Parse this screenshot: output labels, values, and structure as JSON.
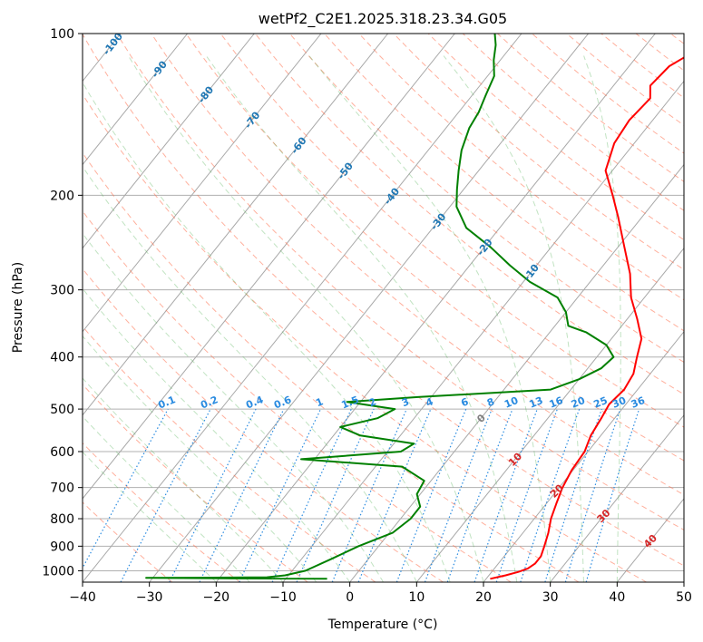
{
  "chart_data": {
    "type": "line",
    "title": "wetPf2_C2E1.2025.318.23.34.G05",
    "xlabel": "Temperature (°C)",
    "ylabel": "Pressure (hPa)",
    "xlim": [
      -40,
      50
    ],
    "ylim": [
      1050,
      100
    ],
    "y_scale": "log",
    "x_ticks": [
      "−40",
      "−30",
      "−20",
      "−10",
      "0",
      "10",
      "20",
      "30",
      "40",
      "50"
    ],
    "x_tick_values": [
      -40,
      -30,
      -20,
      -10,
      0,
      10,
      20,
      30,
      40,
      50
    ],
    "y_ticks": [
      "1000",
      "900",
      "800",
      "700",
      "600",
      "500",
      "400",
      "300",
      "200",
      "100"
    ],
    "y_tick_values": [
      1000,
      900,
      800,
      700,
      600,
      500,
      400,
      300,
      200,
      100
    ],
    "grid": true,
    "skew": "skew-T log-p",
    "colors": {
      "temperature": "#ff0000",
      "dewpoint": "#008000",
      "isotherm_label": "#1f77b4",
      "mixing_ratio": "#2a8be0",
      "dry_adiabat": "#ff6f4d",
      "moist_adiabat": "#4caf50",
      "special_isotherm_label": "#d62728"
    },
    "series": [
      {
        "name": "",
        "color": "#ff0000",
        "points": [
          [
            1035,
            20.6
          ],
          [
            1020,
            22.5
          ],
          [
            1005,
            24.0
          ],
          [
            990,
            25.0
          ],
          [
            970,
            25.5
          ],
          [
            940,
            25.5
          ],
          [
            900,
            24.8
          ],
          [
            850,
            23.8
          ],
          [
            800,
            22.5
          ],
          [
            750,
            21.5
          ],
          [
            700,
            20.5
          ],
          [
            650,
            19.8
          ],
          [
            600,
            19.5
          ],
          [
            560,
            18.5
          ],
          [
            520,
            18.0
          ],
          [
            490,
            17.5
          ],
          [
            460,
            18.0
          ],
          [
            430,
            17.5
          ],
          [
            400,
            16.0
          ],
          [
            370,
            14.5
          ],
          [
            340,
            11.5
          ],
          [
            310,
            8.0
          ],
          [
            280,
            5.0
          ],
          [
            250,
            1.0
          ],
          [
            220,
            -3.5
          ],
          [
            200,
            -7.0
          ],
          [
            180,
            -11.0
          ],
          [
            160,
            -13.0
          ],
          [
            145,
            -13.5
          ],
          [
            132,
            -13.0
          ],
          [
            125,
            -14.5
          ],
          [
            115,
            -14.0
          ],
          [
            108,
            -12.0
          ],
          [
            100,
            -9.0
          ]
        ]
      },
      {
        "name": "",
        "color": "#008000",
        "points": [
          [
            1035,
            -3.8
          ],
          [
            1033,
            -20.0
          ],
          [
            1031,
            -31.0
          ],
          [
            1030,
            -24.0
          ],
          [
            1028,
            -13.0
          ],
          [
            1020,
            -10.5
          ],
          [
            1000,
            -8.0
          ],
          [
            950,
            -5.5
          ],
          [
            900,
            -3.0
          ],
          [
            850,
            0.5
          ],
          [
            800,
            1.5
          ],
          [
            760,
            1.5
          ],
          [
            720,
            -0.5
          ],
          [
            680,
            -1.0
          ],
          [
            640,
            -6.0
          ],
          [
            620,
            -22.0
          ],
          [
            600,
            -8.0
          ],
          [
            580,
            -7.0
          ],
          [
            560,
            -16.0
          ],
          [
            540,
            -20.0
          ],
          [
            520,
            -15.5
          ],
          [
            500,
            -14.0
          ],
          [
            485,
            -22.0
          ],
          [
            475,
            -12.0
          ],
          [
            460,
            7.0
          ],
          [
            440,
            10.0
          ],
          [
            420,
            12.0
          ],
          [
            400,
            12.5
          ],
          [
            380,
            10.0
          ],
          [
            360,
            5.5
          ],
          [
            350,
            2.0
          ],
          [
            330,
            0.0
          ],
          [
            310,
            -3.0
          ],
          [
            290,
            -9.0
          ],
          [
            270,
            -14.0
          ],
          [
            250,
            -19.0
          ],
          [
            230,
            -25.0
          ],
          [
            210,
            -29.0
          ],
          [
            195,
            -31.0
          ],
          [
            180,
            -33.0
          ],
          [
            165,
            -35.0
          ],
          [
            150,
            -36.5
          ],
          [
            140,
            -37.0
          ],
          [
            130,
            -38.0
          ],
          [
            120,
            -39.0
          ],
          [
            112,
            -41.0
          ],
          [
            105,
            -42.5
          ],
          [
            100,
            -44.0
          ]
        ]
      }
    ],
    "isotherm_labels": [
      "-100",
      "-90",
      "-80",
      "-70",
      "-60",
      "-50",
      "-40",
      "-30",
      "-20",
      "-10"
    ],
    "isotherm_values": [
      -100,
      -90,
      -80,
      -70,
      -60,
      -50,
      -40,
      -30,
      -20,
      -10
    ],
    "mixing_ratio_labels": [
      "0.1",
      "0.2",
      "0.4",
      "0.6",
      "1",
      "1.5",
      "2",
      "3",
      "4",
      "6",
      "8",
      "10",
      "13",
      "16",
      "20",
      "25",
      "30",
      "36"
    ],
    "mixing_ratio_values": [
      0.1,
      0.2,
      0.4,
      0.6,
      1,
      1.5,
      2,
      3,
      4,
      6,
      8,
      10,
      13,
      16,
      20,
      25,
      30,
      36
    ],
    "special_isotherm_labels": [
      "0",
      "10",
      "20",
      "30",
      "40"
    ],
    "special_isotherm_values": [
      0,
      10,
      20,
      30,
      40
    ]
  }
}
